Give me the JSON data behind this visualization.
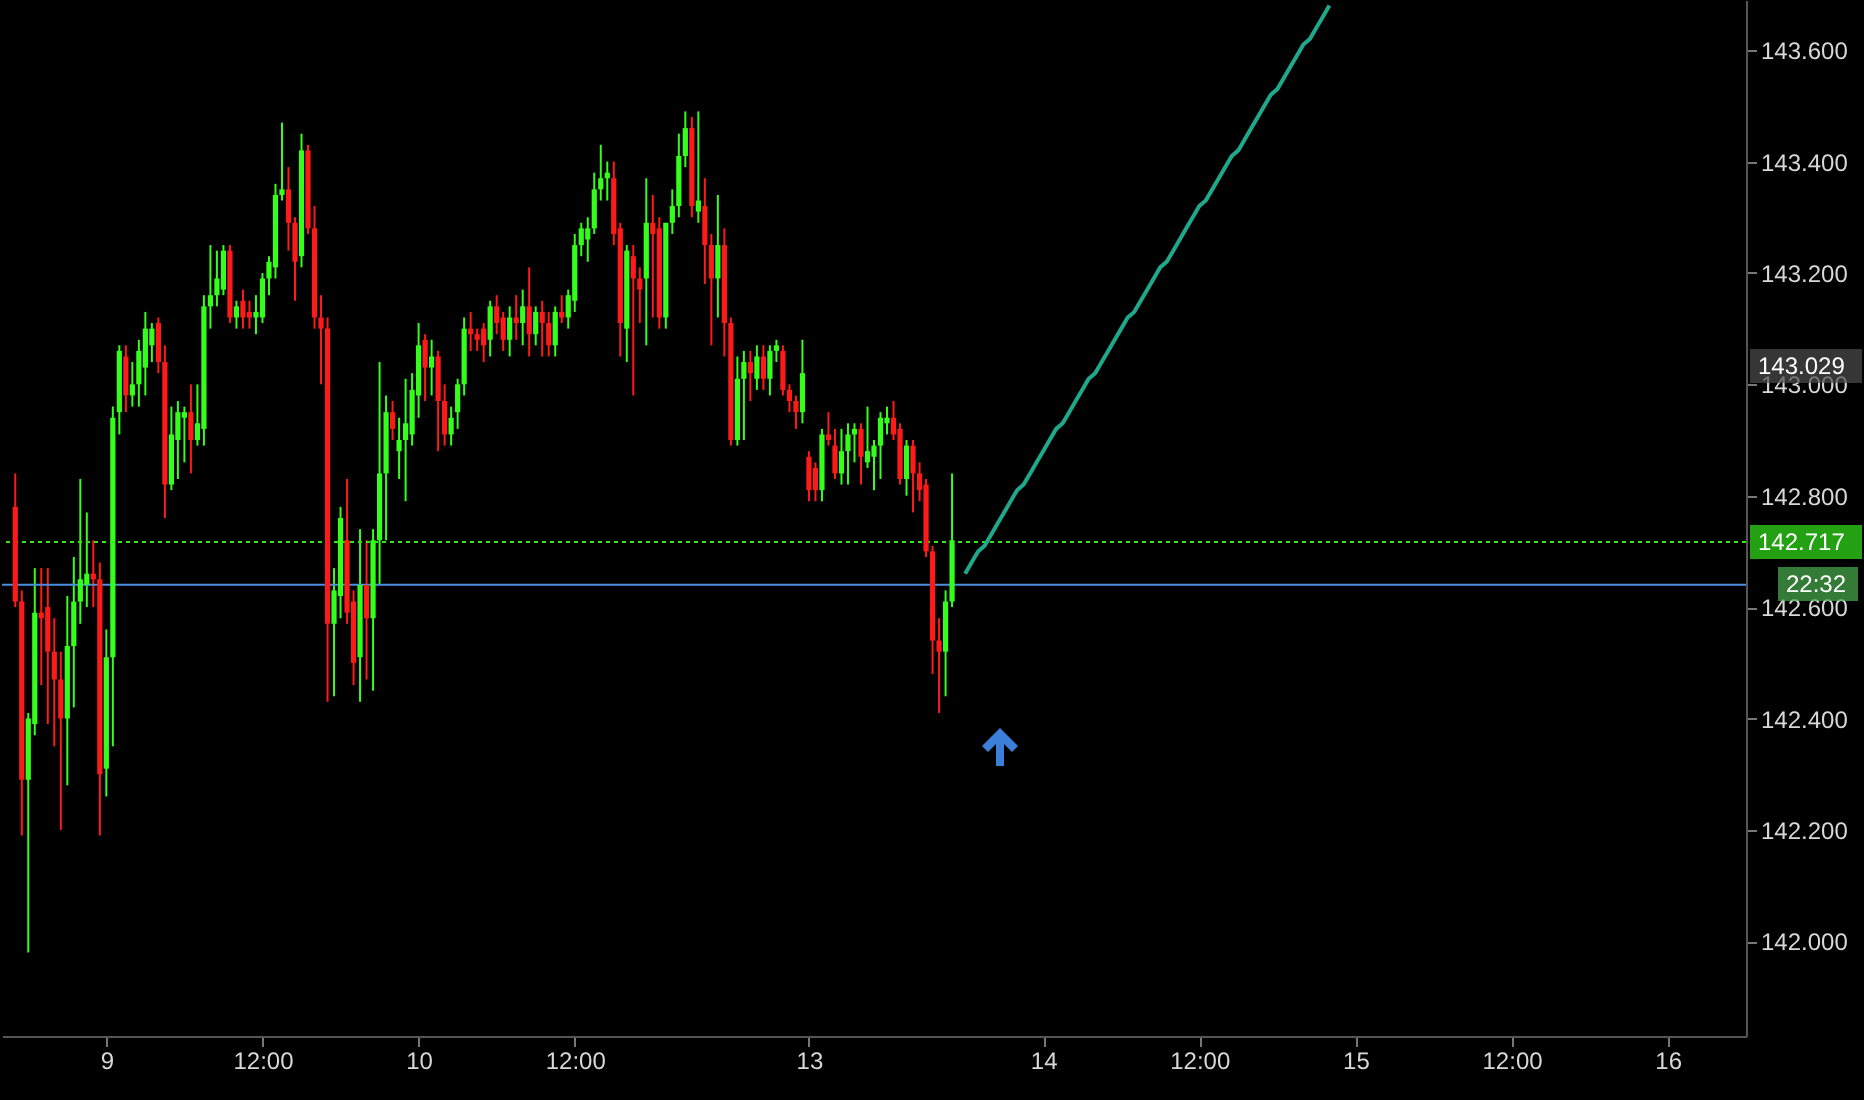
{
  "chart_data": {
    "type": "candlestick",
    "categories": [
      null,
      null,
      null,
      null,
      null,
      null,
      null,
      null,
      null,
      null,
      null,
      null,
      null,
      null,
      "9",
      null,
      null,
      null,
      null,
      null,
      null,
      null,
      null,
      null,
      null,
      null,
      null,
      null,
      null,
      null,
      null,
      null,
      null,
      null,
      null,
      null,
      null,
      null,
      "12:00",
      null,
      null,
      null,
      null,
      null,
      null,
      null,
      null,
      null,
      null,
      null,
      null,
      null,
      null,
      null,
      null,
      null,
      null,
      null,
      null,
      null,
      null,
      null,
      "10",
      null,
      null,
      null,
      null,
      null,
      null,
      null,
      null,
      null,
      null,
      null,
      null,
      null,
      null,
      null,
      null,
      null,
      null,
      null,
      null,
      null,
      null,
      null,
      "12:00",
      null,
      null,
      null,
      null,
      null,
      null,
      null,
      null,
      null,
      null,
      null,
      null,
      null,
      null,
      null,
      null,
      null,
      null,
      null,
      null,
      null,
      null,
      null,
      null,
      null,
      null,
      null,
      null,
      null,
      null,
      null,
      null,
      null,
      null,
      null,
      "13",
      null,
      null,
      null,
      null,
      null,
      null,
      null,
      null,
      null,
      null,
      null,
      null,
      null,
      null,
      null,
      null,
      null,
      null,
      null,
      null,
      null,
      null,
      null,
      null,
      null,
      null,
      null,
      null,
      null,
      null,
      null,
      null,
      null,
      null,
      null,
      "14",
      null,
      null,
      null,
      null,
      null,
      null,
      null,
      null,
      null,
      null,
      null,
      null,
      null,
      null,
      null,
      null,
      null,
      null,
      null,
      null,
      null,
      null,
      null,
      "12:00",
      null,
      null,
      null,
      null,
      null,
      null,
      null,
      null,
      null,
      null,
      null,
      null,
      null,
      null,
      null,
      null,
      null,
      null,
      null,
      null,
      null,
      null,
      null,
      "15",
      null,
      null,
      null,
      null,
      null,
      null,
      null,
      null,
      null,
      null,
      null,
      null,
      null,
      null,
      null,
      null,
      null,
      null,
      null,
      null,
      null,
      null,
      null,
      "12:00",
      null,
      null,
      null,
      null,
      null,
      null,
      null,
      null,
      null,
      null,
      null,
      null,
      null,
      null,
      null,
      null,
      null,
      null,
      null,
      null,
      null,
      null,
      null,
      "16",
      null,
      null,
      null,
      null,
      null,
      null,
      null,
      null,
      null,
      null
    ],
    "ohlc": [
      [
        142.78,
        142.84,
        142.6,
        142.61
      ],
      [
        142.61,
        142.63,
        142.19,
        142.29
      ],
      [
        142.29,
        142.41,
        141.98,
        142.4
      ],
      [
        142.39,
        142.67,
        142.37,
        142.59
      ],
      [
        142.59,
        142.67,
        142.46,
        142.58
      ],
      [
        142.6,
        142.67,
        142.39,
        142.52
      ],
      [
        142.52,
        142.58,
        142.35,
        142.47
      ],
      [
        142.47,
        142.52,
        142.2,
        142.4
      ],
      [
        142.4,
        142.62,
        142.28,
        142.53
      ],
      [
        142.53,
        142.69,
        142.42,
        142.61
      ],
      [
        142.61,
        142.83,
        142.57,
        142.65
      ],
      [
        142.64,
        142.77,
        142.6,
        142.66
      ],
      [
        142.66,
        142.72,
        142.6,
        142.65
      ],
      [
        142.65,
        142.68,
        142.19,
        142.3
      ],
      [
        142.31,
        142.56,
        142.26,
        142.51
      ],
      [
        142.51,
        142.96,
        142.35,
        142.94
      ],
      [
        142.95,
        143.07,
        142.91,
        143.06
      ],
      [
        143.05,
        143.07,
        142.95,
        142.98
      ],
      [
        142.98,
        143.04,
        142.96,
        143.0
      ],
      [
        143.0,
        143.08,
        142.96,
        143.06
      ],
      [
        143.03,
        143.13,
        142.98,
        143.1
      ],
      [
        143.07,
        143.11,
        143.04,
        143.1
      ],
      [
        143.11,
        143.12,
        143.02,
        143.04
      ],
      [
        143.04,
        143.07,
        142.76,
        142.82
      ],
      [
        142.82,
        142.96,
        142.81,
        142.91
      ],
      [
        142.9,
        142.97,
        142.83,
        142.95
      ],
      [
        142.94,
        142.96,
        142.86,
        142.95
      ],
      [
        142.95,
        143.0,
        142.84,
        142.9
      ],
      [
        142.9,
        143.0,
        142.89,
        142.93
      ],
      [
        142.92,
        143.16,
        142.89,
        143.14
      ],
      [
        143.14,
        143.25,
        143.1,
        143.16
      ],
      [
        143.16,
        143.24,
        143.14,
        143.19
      ],
      [
        143.17,
        143.25,
        143.16,
        143.24
      ],
      [
        143.24,
        143.25,
        143.11,
        143.12
      ],
      [
        143.12,
        143.15,
        143.1,
        143.14
      ],
      [
        143.15,
        143.17,
        143.1,
        143.12
      ],
      [
        143.13,
        143.15,
        143.1,
        143.12
      ],
      [
        143.12,
        143.16,
        143.09,
        143.13
      ],
      [
        143.12,
        143.2,
        143.11,
        143.19
      ],
      [
        143.19,
        143.23,
        143.16,
        143.22
      ],
      [
        143.21,
        143.36,
        143.19,
        143.34
      ],
      [
        143.34,
        143.47,
        143.33,
        143.35
      ],
      [
        143.35,
        143.39,
        143.24,
        143.29
      ],
      [
        143.29,
        143.3,
        143.15,
        143.22
      ],
      [
        143.23,
        143.45,
        143.21,
        143.42
      ],
      [
        143.42,
        143.43,
        143.27,
        143.28
      ],
      [
        143.28,
        143.32,
        143.1,
        143.12
      ],
      [
        143.12,
        143.16,
        143.0,
        143.1
      ],
      [
        143.1,
        143.12,
        142.43,
        142.57
      ],
      [
        142.57,
        142.67,
        142.44,
        142.63
      ],
      [
        142.62,
        142.78,
        142.58,
        142.76
      ],
      [
        142.72,
        142.83,
        142.57,
        142.59
      ],
      [
        142.61,
        142.63,
        142.46,
        142.5
      ],
      [
        142.51,
        142.74,
        142.43,
        142.64
      ],
      [
        142.64,
        142.72,
        142.47,
        142.58
      ],
      [
        142.58,
        142.74,
        142.45,
        142.72
      ],
      [
        142.72,
        143.04,
        142.64,
        142.84
      ],
      [
        142.84,
        142.98,
        142.72,
        142.95
      ],
      [
        142.95,
        142.97,
        142.9,
        142.92
      ],
      [
        142.88,
        142.94,
        142.83,
        142.9
      ],
      [
        142.9,
        143.01,
        142.79,
        142.93
      ],
      [
        142.91,
        143.02,
        142.89,
        142.99
      ],
      [
        142.98,
        143.11,
        142.94,
        143.07
      ],
      [
        143.08,
        143.09,
        142.97,
        143.03
      ],
      [
        143.03,
        143.08,
        142.98,
        143.05
      ],
      [
        143.05,
        143.06,
        142.88,
        142.97
      ],
      [
        142.97,
        143.0,
        142.89,
        142.91
      ],
      [
        142.91,
        142.96,
        142.89,
        142.94
      ],
      [
        142.95,
        143.01,
        142.92,
        143.0
      ],
      [
        143.0,
        143.12,
        142.98,
        143.1
      ],
      [
        143.1,
        143.13,
        143.06,
        143.09
      ],
      [
        143.09,
        143.1,
        143.06,
        143.08
      ],
      [
        143.1,
        143.11,
        143.04,
        143.07
      ],
      [
        143.08,
        143.15,
        143.05,
        143.14
      ],
      [
        143.14,
        143.16,
        143.09,
        143.11
      ],
      [
        143.12,
        143.13,
        143.06,
        143.08
      ],
      [
        143.08,
        143.14,
        143.05,
        143.12
      ],
      [
        143.12,
        143.16,
        143.08,
        143.11
      ],
      [
        143.11,
        143.17,
        143.07,
        143.14
      ],
      [
        143.14,
        143.21,
        143.05,
        143.09
      ],
      [
        143.09,
        143.14,
        143.07,
        143.13
      ],
      [
        143.13,
        143.15,
        143.05,
        143.11
      ],
      [
        143.11,
        143.13,
        143.05,
        143.07
      ],
      [
        143.07,
        143.14,
        143.05,
        143.13
      ],
      [
        143.13,
        143.16,
        143.11,
        143.12
      ],
      [
        143.12,
        143.17,
        143.1,
        143.16
      ],
      [
        143.15,
        143.27,
        143.13,
        143.25
      ],
      [
        143.25,
        143.29,
        143.23,
        143.28
      ],
      [
        143.26,
        143.3,
        143.22,
        143.28
      ],
      [
        143.28,
        143.38,
        143.27,
        143.35
      ],
      [
        143.35,
        143.43,
        143.33,
        143.37
      ],
      [
        143.37,
        143.4,
        143.33,
        143.38
      ],
      [
        143.37,
        143.4,
        143.25,
        143.27
      ],
      [
        143.28,
        143.29,
        143.05,
        143.11
      ],
      [
        143.1,
        143.25,
        143.04,
        143.24
      ],
      [
        143.23,
        143.25,
        142.98,
        143.19
      ],
      [
        143.19,
        143.21,
        143.11,
        143.17
      ],
      [
        143.19,
        143.37,
        143.07,
        143.29
      ],
      [
        143.29,
        143.34,
        143.12,
        143.27
      ],
      [
        143.28,
        143.3,
        143.1,
        143.12
      ],
      [
        143.12,
        143.29,
        143.1,
        143.29
      ],
      [
        143.29,
        143.35,
        143.27,
        143.32
      ],
      [
        143.32,
        143.45,
        143.3,
        143.41
      ],
      [
        143.41,
        143.49,
        143.39,
        143.46
      ],
      [
        143.46,
        143.48,
        143.3,
        143.32
      ],
      [
        143.31,
        143.49,
        143.29,
        143.33
      ],
      [
        143.32,
        143.37,
        143.18,
        143.25
      ],
      [
        143.25,
        143.27,
        143.07,
        143.19
      ],
      [
        143.19,
        143.34,
        143.12,
        143.25
      ],
      [
        143.25,
        143.28,
        143.05,
        143.11
      ],
      [
        143.11,
        143.12,
        142.89,
        142.9
      ],
      [
        142.9,
        143.05,
        142.89,
        143.01
      ],
      [
        143.01,
        143.06,
        142.9,
        143.04
      ],
      [
        143.04,
        143.06,
        142.97,
        143.02
      ],
      [
        143.01,
        143.07,
        142.99,
        143.05
      ],
      [
        143.05,
        143.07,
        142.99,
        143.01
      ],
      [
        143.01,
        143.07,
        142.98,
        143.06
      ],
      [
        143.06,
        143.08,
        143.04,
        143.07
      ],
      [
        143.06,
        143.07,
        142.98,
        142.99
      ],
      [
        142.99,
        143.0,
        142.95,
        142.97
      ],
      [
        142.97,
        142.98,
        142.92,
        142.95
      ],
      [
        142.95,
        143.08,
        142.93,
        143.02
      ],
      [
        142.87,
        142.88,
        142.79,
        142.81
      ],
      [
        142.85,
        142.86,
        142.79,
        142.81
      ],
      [
        142.81,
        142.92,
        142.79,
        142.91
      ],
      [
        142.91,
        142.95,
        142.89,
        142.9
      ],
      [
        142.89,
        142.92,
        142.83,
        142.84
      ],
      [
        142.84,
        142.92,
        142.82,
        142.88
      ],
      [
        142.88,
        142.93,
        142.82,
        142.91
      ],
      [
        142.91,
        142.93,
        142.86,
        142.92
      ],
      [
        142.92,
        142.93,
        142.82,
        142.87
      ],
      [
        142.86,
        142.96,
        142.85,
        142.88
      ],
      [
        142.87,
        142.9,
        142.81,
        142.89
      ],
      [
        142.89,
        142.95,
        142.83,
        142.94
      ],
      [
        142.93,
        142.96,
        142.91,
        142.94
      ],
      [
        142.94,
        142.97,
        142.9,
        142.91
      ],
      [
        142.92,
        142.93,
        142.82,
        142.83
      ],
      [
        142.83,
        142.9,
        142.8,
        142.89
      ],
      [
        142.89,
        142.9,
        142.77,
        142.84
      ],
      [
        142.84,
        142.86,
        142.79,
        142.81
      ],
      [
        142.82,
        142.83,
        142.69,
        142.7
      ],
      [
        142.7,
        142.71,
        142.48,
        142.54
      ],
      [
        142.54,
        142.58,
        142.41,
        142.52
      ],
      [
        142.52,
        142.63,
        142.44,
        142.61
      ],
      [
        142.61,
        142.84,
        142.6,
        142.72
      ],
      null,
      null,
      null,
      null,
      null,
      null,
      null,
      null,
      null,
      null,
      null,
      null,
      null,
      null,
      null,
      null,
      null,
      null,
      null,
      null,
      null,
      null,
      null,
      null,
      null,
      null,
      null,
      null,
      null,
      null,
      null,
      null,
      null,
      null,
      null,
      null,
      null,
      null,
      null,
      null,
      null,
      null,
      null,
      null,
      null,
      null,
      null,
      null,
      null,
      null,
      null,
      null,
      null,
      null,
      null,
      null,
      null,
      null,
      null,
      null,
      null,
      null,
      null,
      null,
      null,
      null,
      null,
      null,
      null,
      null,
      null,
      null,
      null,
      null,
      null,
      null,
      null,
      null,
      null,
      null,
      null,
      null,
      null,
      null,
      null,
      null,
      null,
      null,
      null,
      null,
      null,
      null,
      null,
      null,
      null,
      null,
      null,
      null,
      null,
      null,
      null,
      null,
      null,
      null,
      null,
      null,
      null,
      null,
      null,
      null,
      null,
      null,
      null,
      null,
      null,
      null,
      null,
      null,
      null,
      null
    ],
    "colors": [
      "#ff1a1a",
      "#ff1a1a",
      "#33ff1a",
      "#33ff1a",
      "#ff1a1a",
      "#ff1a1a",
      "#ff1a1a",
      "#ff1a1a",
      "#33ff1a",
      "#33ff1a",
      "#33ff1a",
      "#33ff1a",
      "#ff1a1a",
      "#ff1a1a",
      "#33ff1a",
      "#33ff1a",
      "#33ff1a",
      "#ff1a1a",
      "#33ff1a",
      "#33ff1a",
      "#33ff1a",
      "#33ff1a",
      "#ff1a1a",
      "#ff1a1a",
      "#33ff1a",
      "#33ff1a",
      "#33ff1a",
      "#ff1a1a",
      "#33ff1a",
      "#33ff1a",
      "#33ff1a",
      "#33ff1a",
      "#33ff1a",
      "#ff1a1a",
      "#33ff1a",
      "#ff1a1a",
      "#ff1a1a",
      "#33ff1a",
      "#33ff1a",
      "#33ff1a",
      "#33ff1a",
      "#33ff1a",
      "#ff1a1a",
      "#ff1a1a",
      "#33ff1a",
      "#ff1a1a",
      "#ff1a1a",
      "#ff1a1a",
      "#ff1a1a",
      "#33ff1a",
      "#33ff1a",
      "#ff1a1a",
      "#ff1a1a",
      "#33ff1a",
      "#ff1a1a",
      "#33ff1a",
      "#33ff1a",
      "#33ff1a",
      "#ff1a1a",
      "#33ff1a",
      "#33ff1a",
      "#33ff1a",
      "#33ff1a",
      "#ff1a1a",
      "#33ff1a",
      "#ff1a1a",
      "#ff1a1a",
      "#33ff1a",
      "#33ff1a",
      "#33ff1a",
      "#ff1a1a",
      "#ff1a1a",
      "#ff1a1a",
      "#33ff1a",
      "#ff1a1a",
      "#ff1a1a",
      "#33ff1a",
      "#ff1a1a",
      "#33ff1a",
      "#ff1a1a",
      "#33ff1a",
      "#ff1a1a",
      "#ff1a1a",
      "#33ff1a",
      "#ff1a1a",
      "#33ff1a",
      "#33ff1a",
      "#33ff1a",
      "#33ff1a",
      "#33ff1a",
      "#33ff1a",
      "#33ff1a",
      "#ff1a1a",
      "#ff1a1a",
      "#33ff1a",
      "#ff1a1a",
      "#ff1a1a",
      "#33ff1a",
      "#ff1a1a",
      "#ff1a1a",
      "#33ff1a",
      "#33ff1a",
      "#33ff1a",
      "#33ff1a",
      "#ff1a1a",
      "#33ff1a",
      "#ff1a1a",
      "#ff1a1a",
      "#33ff1a",
      "#ff1a1a",
      "#ff1a1a",
      "#33ff1a",
      "#33ff1a",
      "#ff1a1a",
      "#33ff1a",
      "#ff1a1a",
      "#33ff1a",
      "#33ff1a",
      "#ff1a1a",
      "#ff1a1a",
      "#ff1a1a",
      "#33ff1a",
      "#ff1a1a",
      "#ff1a1a",
      "#33ff1a",
      "#ff1a1a",
      "#ff1a1a",
      "#33ff1a",
      "#33ff1a",
      "#33ff1a",
      "#ff1a1a",
      "#33ff1a",
      "#33ff1a",
      "#33ff1a",
      "#33ff1a",
      "#ff1a1a",
      "#ff1a1a",
      "#33ff1a",
      "#ff1a1a",
      "#ff1a1a",
      "#ff1a1a",
      "#ff1a1a",
      "#ff1a1a",
      "#33ff1a",
      "#33ff1a",
      null,
      null,
      null,
      null,
      null,
      null,
      null,
      null,
      null,
      null,
      null,
      null,
      null,
      null,
      null,
      null,
      null,
      null,
      null,
      null,
      null,
      null,
      null,
      null,
      null,
      null,
      null,
      null,
      null,
      null,
      null,
      null,
      null,
      null,
      null,
      null,
      null,
      null,
      null,
      null,
      null,
      null,
      null,
      null,
      null,
      null,
      null,
      null,
      null,
      null,
      null,
      null,
      null,
      null,
      null,
      null,
      null,
      null,
      null,
      null,
      null,
      null,
      null,
      null,
      null,
      null,
      null,
      null,
      null,
      null,
      null,
      null,
      null,
      null,
      null,
      null,
      null,
      null,
      null,
      null,
      null,
      null,
      null,
      null,
      null,
      null,
      null,
      null,
      null,
      null,
      null,
      null,
      null,
      null,
      null,
      null,
      null,
      null,
      null,
      null,
      null,
      null,
      null,
      null,
      null,
      null,
      null,
      null,
      null,
      null,
      null,
      null,
      null,
      null,
      null,
      null,
      null,
      null,
      null,
      null
    ],
    "series": [
      {
        "type": "line",
        "color": "#1fa88c",
        "values": [
          null,
          null,
          null,
          null,
          null,
          null,
          null,
          null,
          null,
          null,
          null,
          null,
          null,
          null,
          null,
          null,
          null,
          null,
          null,
          null,
          null,
          null,
          null,
          null,
          null,
          null,
          null,
          null,
          null,
          null,
          null,
          null,
          null,
          null,
          null,
          null,
          null,
          null,
          null,
          null,
          null,
          null,
          null,
          null,
          null,
          null,
          null,
          null,
          null,
          null,
          null,
          null,
          null,
          null,
          null,
          null,
          null,
          null,
          null,
          null,
          null,
          null,
          null,
          null,
          null,
          null,
          null,
          null,
          null,
          null,
          null,
          null,
          null,
          null,
          null,
          null,
          null,
          null,
          null,
          null,
          null,
          null,
          null,
          null,
          null,
          null,
          null,
          null,
          null,
          null,
          null,
          null,
          null,
          null,
          null,
          null,
          null,
          null,
          null,
          null,
          null,
          null,
          null,
          null,
          null,
          null,
          null,
          null,
          null,
          null,
          null,
          null,
          null,
          null,
          null,
          null,
          null,
          null,
          null,
          null,
          null,
          null,
          null,
          null,
          null,
          null,
          null,
          null,
          null,
          null,
          null,
          null,
          null,
          null,
          null,
          null,
          null,
          null,
          null,
          null,
          null,
          null,
          null,
          null,
          null,
          null,
          142.66,
          142.68,
          142.7,
          142.71,
          142.73,
          142.75,
          142.77,
          142.79,
          142.81,
          142.82,
          142.84,
          142.86,
          142.88,
          142.9,
          142.92,
          142.93,
          142.95,
          142.97,
          142.99,
          143.01,
          143.02,
          143.04,
          143.06,
          143.08,
          143.1,
          143.12,
          143.13,
          143.15,
          143.17,
          143.19,
          143.21,
          143.22,
          143.24,
          143.26,
          143.28,
          143.3,
          143.32,
          143.33,
          143.35,
          143.37,
          143.39,
          143.41,
          143.42,
          143.44,
          143.46,
          143.48,
          143.5,
          143.52,
          143.53,
          143.55,
          143.57,
          143.59,
          143.61,
          143.62,
          143.64,
          143.66,
          143.68,
          null,
          null,
          null,
          null,
          null,
          null,
          null,
          null,
          null,
          null,
          null,
          null,
          null,
          null,
          null,
          null,
          null,
          null,
          null,
          null,
          null,
          null,
          null,
          null,
          null,
          null,
          null,
          null,
          null,
          null,
          null,
          null,
          null,
          null,
          null,
          null,
          null,
          null,
          null,
          null,
          null,
          null,
          null,
          null,
          null,
          null,
          null,
          null,
          null,
          null,
          null,
          null,
          null,
          null,
          null,
          null,
          null,
          null,
          null,
          null,
          null,
          null
        ]
      }
    ],
    "ylim": [
      141.83,
      143.69
    ],
    "yticks": [
      {
        "value": 142,
        "label": "142.000"
      },
      {
        "value": 142.2,
        "label": "142.200"
      },
      {
        "value": 142.4,
        "label": "142.400"
      },
      {
        "value": 142.6,
        "label": "142.600"
      },
      {
        "value": 142.8,
        "label": "142.800"
      },
      {
        "value": 143,
        "label": "143.000"
      },
      {
        "value": 143.2,
        "label": "143.200"
      },
      {
        "value": 143.4,
        "label": "143.400"
      },
      {
        "value": 143.6,
        "label": "143.600"
      }
    ],
    "ref_lines": [
      {
        "axis": "y",
        "value": 142.717,
        "label": "142.717",
        "color": "#33e61a",
        "line_style": "dotted"
      },
      {
        "axis": "y",
        "value": 142.64,
        "color": "#4a8fe0",
        "line_style": "solid"
      }
    ],
    "annotations": [
      "143.029",
      "22:32"
    ]
  }
}
